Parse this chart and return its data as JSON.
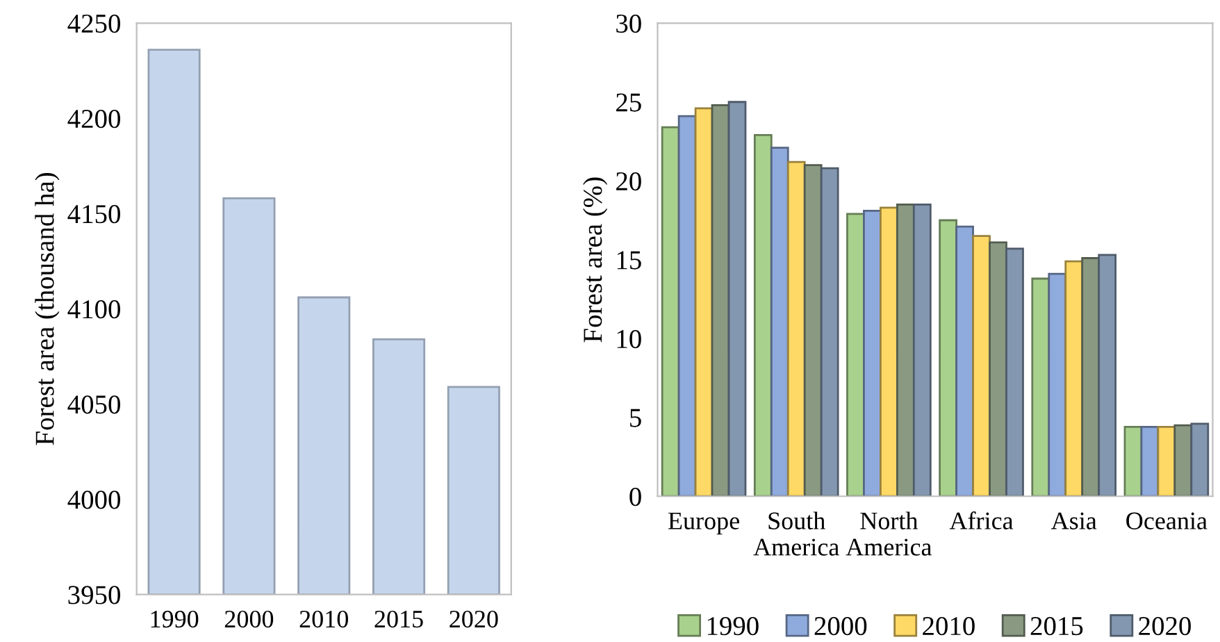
{
  "chart_data": [
    {
      "type": "bar",
      "ylabel": "Forest area (thousand ha)",
      "categories": [
        "1990",
        "2000",
        "2010",
        "2015",
        "2020"
      ],
      "values": [
        4236,
        4158,
        4106,
        4084,
        4059
      ],
      "color": "#c5d6ec",
      "ylim": [
        3950,
        4250
      ],
      "yticks": [
        3950,
        4000,
        4050,
        4100,
        4150,
        4200,
        4250
      ],
      "grid": false,
      "legend": false
    },
    {
      "type": "bar",
      "ylabel": "Forest area (%)",
      "categories": [
        "Europe",
        "South\nAmerica",
        "North\nAmerica",
        "Africa",
        "Asia",
        "Oceania"
      ],
      "series": [
        {
          "name": "1990",
          "color": "#a9d18e",
          "values": [
            23.4,
            22.9,
            17.9,
            17.5,
            13.8,
            4.4
          ]
        },
        {
          "name": "2000",
          "color": "#8faadc",
          "values": [
            24.1,
            22.1,
            18.1,
            17.1,
            14.1,
            4.4
          ]
        },
        {
          "name": "2010",
          "color": "#ffd966",
          "values": [
            24.6,
            21.2,
            18.3,
            16.5,
            14.9,
            4.4
          ]
        },
        {
          "name": "2015",
          "color": "#8a9a82",
          "values": [
            24.8,
            21.0,
            18.5,
            16.1,
            15.1,
            4.5
          ]
        },
        {
          "name": "2020",
          "color": "#8497b0",
          "values": [
            25.0,
            20.8,
            18.5,
            15.7,
            15.3,
            4.6
          ]
        }
      ],
      "ylim": [
        0,
        30
      ],
      "yticks": [
        0,
        5,
        10,
        15,
        20,
        25,
        30
      ],
      "grid": false,
      "legend": "bottom"
    }
  ]
}
